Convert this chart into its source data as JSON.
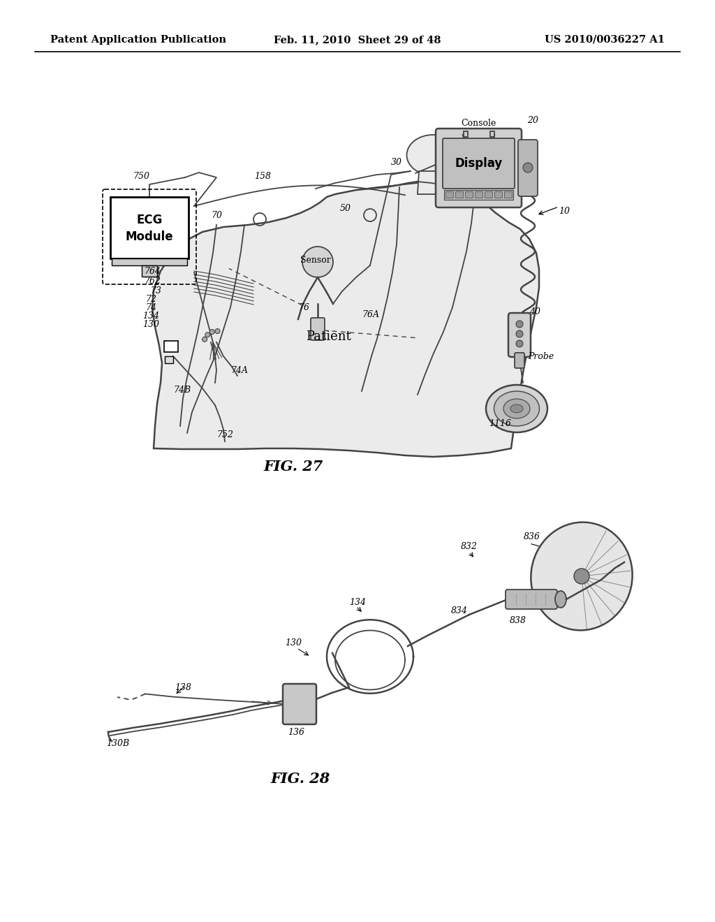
{
  "background_color": "#ffffff",
  "header": {
    "left": "Patent Application Publication",
    "center": "Feb. 11, 2010  Sheet 29 of 48",
    "right": "US 2010/0036227 A1",
    "y": 57,
    "fontsize": 10.5
  }
}
